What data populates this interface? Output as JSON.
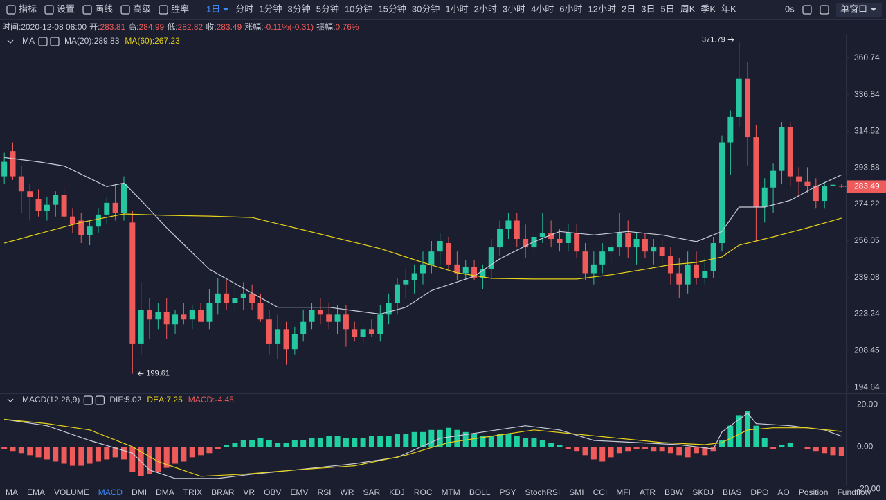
{
  "toolbar": {
    "tools": [
      "指标",
      "设置",
      "画线",
      "高级",
      "胜率"
    ],
    "intervals": [
      "1日",
      "分时",
      "1分钟",
      "3分钟",
      "5分钟",
      "10分钟",
      "15分钟",
      "30分钟",
      "1小时",
      "2小时",
      "3小时",
      "4小时",
      "6小时",
      "12小时",
      "2日",
      "3日",
      "5日",
      "周K",
      "季K",
      "年K"
    ],
    "active_interval_index": 0,
    "timer": "0s",
    "window": "单窗口"
  },
  "info_bar": {
    "time": "时间:2020-12-08 08:00",
    "open": "开:",
    "high": "高:",
    "low": "低:",
    "close": "收:",
    "change": "涨幅:",
    "change_value": "-0.11%(-0.31)",
    "amplitude": "振幅:",
    "amplitude_value": "0.76%"
  },
  "indicator_tabs": {
    "items": [
      "MA",
      "EMA",
      "VOLUME",
      "MACD",
      "DMI",
      "DMA",
      "TRIX",
      "BRAR",
      "VR",
      "OBV",
      "EMV",
      "RSI",
      "WR",
      "SAR",
      "KDJ",
      "ROC",
      "MTM",
      "BOLL",
      "PSY",
      "StochRSI",
      "SMI",
      "CCI",
      "MFI",
      "ATR",
      "BBW",
      "SKDJ",
      "BIAS",
      "DPO",
      "AO",
      "Position",
      "Fundflow"
    ],
    "active_index": 3
  },
  "chart_data": [
    {
      "type": "candlestick",
      "indicator": "MA",
      "log": true,
      "grid": false,
      "up_color": "#26c6a0",
      "down_color": "#ef5b5b",
      "ylim": [
        192.4,
        377.9
      ],
      "yticks": [
        194.64,
        208.45,
        223.24,
        239.08,
        256.05,
        274.22,
        293.68,
        314.52,
        336.84,
        360.74
      ],
      "open": [
        289,
        303,
        289,
        281,
        277,
        271,
        274,
        279,
        268,
        266,
        259,
        263,
        269,
        275,
        270,
        265,
        211,
        225,
        221,
        224,
        219,
        223,
        221,
        225,
        220,
        228,
        232,
        228,
        230,
        232,
        228,
        221,
        211,
        217,
        209,
        215,
        220,
        225,
        223,
        220,
        223,
        217,
        214,
        217,
        215,
        223,
        228,
        236,
        238,
        241,
        245,
        251,
        255,
        245,
        241,
        244,
        239,
        243,
        253,
        262,
        266,
        257,
        253,
        258,
        260,
        257,
        255,
        260,
        251,
        241,
        245,
        251,
        253,
        260,
        253,
        257,
        251,
        253,
        249,
        241,
        236,
        245,
        239,
        242,
        255,
        308,
        323,
        347,
        311,
        273,
        283,
        292,
        317,
        289,
        286,
        284,
        276,
        284,
        283.81
      ],
      "high": [
        302,
        308,
        295,
        285,
        282,
        278,
        281,
        284,
        272,
        270,
        266,
        272,
        278,
        285,
        289,
        271,
        237,
        230,
        228,
        230,
        225,
        228,
        227,
        228,
        234,
        239,
        238,
        236,
        237,
        236,
        232,
        225,
        223,
        220,
        218,
        225,
        228,
        230,
        228,
        227,
        227,
        220,
        218,
        221,
        227,
        232,
        239,
        243,
        245,
        251,
        256,
        260,
        258,
        251,
        247,
        247,
        245,
        257,
        266,
        270,
        270,
        264,
        262,
        270,
        266,
        262,
        264,
        264,
        255,
        251,
        255,
        258,
        270,
        266,
        260,
        260,
        257,
        257,
        253,
        248,
        251,
        251,
        248,
        258,
        312,
        327,
        371.79,
        358,
        318,
        288,
        296,
        320,
        320,
        294,
        294,
        288,
        286,
        288,
        284.99
      ],
      "low": [
        285,
        287,
        270,
        266,
        268,
        266,
        268,
        266,
        260,
        255,
        254,
        260,
        264,
        266,
        266,
        199.61,
        207,
        213,
        217,
        213,
        215,
        219,
        217,
        220,
        217,
        223,
        225,
        223,
        225,
        225,
        220,
        207,
        205,
        203,
        207,
        212,
        217,
        219,
        217,
        215,
        210,
        212,
        211,
        214,
        212,
        219,
        223,
        230,
        232,
        236,
        241,
        245,
        243,
        238,
        238,
        238,
        234,
        239,
        249,
        257,
        253,
        248,
        248,
        255,
        253,
        251,
        251,
        248,
        238,
        236,
        241,
        245,
        249,
        248,
        245,
        248,
        245,
        245,
        236,
        230,
        232,
        236,
        236,
        239,
        251,
        290,
        317,
        295,
        256,
        265,
        270,
        285,
        284,
        278,
        280,
        272,
        272,
        280,
        282.82
      ],
      "close": [
        297,
        289,
        281,
        278,
        271,
        274,
        279,
        268,
        264,
        259,
        263,
        269,
        275,
        270,
        285,
        211,
        225,
        221,
        224,
        219,
        223,
        221,
        225,
        220,
        228,
        232,
        228,
        230,
        232,
        228,
        221,
        211,
        217,
        209,
        215,
        220,
        225,
        223,
        220,
        223,
        217,
        214,
        217,
        215,
        223,
        228,
        236,
        238,
        241,
        245,
        251,
        256,
        245,
        241,
        244,
        239,
        243,
        253,
        262,
        266,
        257,
        253,
        258,
        260,
        257,
        255,
        260,
        251,
        241,
        245,
        251,
        253,
        260,
        253,
        257,
        251,
        253,
        249,
        241,
        236,
        245,
        239,
        242,
        255,
        308,
        323,
        347,
        311,
        273,
        283,
        292,
        317,
        289,
        286,
        284,
        276,
        284,
        284.5,
        283.49
      ],
      "series": [
        {
          "name": "MA(20):",
          "color": "#c9ccd8",
          "x": [
            0,
            4,
            7,
            12,
            14,
            16,
            19,
            24,
            27,
            32,
            38,
            44,
            47,
            50,
            55,
            58,
            62,
            65,
            69,
            73,
            77,
            81,
            84,
            86,
            89,
            92,
            95,
            98
          ],
          "values": [
            299.4,
            297,
            294.7,
            283.5,
            285.4,
            276.3,
            262.4,
            242.8,
            236.4,
            226.1,
            226.1,
            223.2,
            226.1,
            233.3,
            239.6,
            247.6,
            255.7,
            260.6,
            258.9,
            260.6,
            258.9,
            255.7,
            260.6,
            272.8,
            272.8,
            276.3,
            283.5,
            289.83
          ]
        },
        {
          "name": "MA(60):",
          "color": "#e6d319",
          "x": [
            0,
            5,
            9,
            14,
            19,
            24,
            29,
            34,
            39,
            44,
            49,
            53,
            57,
            62,
            67,
            71,
            75,
            78,
            81,
            84,
            86,
            90,
            94,
            98
          ],
          "values": [
            255.0,
            260.6,
            265.1,
            269.3,
            268.6,
            268.2,
            267.5,
            262.4,
            257.3,
            252.4,
            245.9,
            241.2,
            238.7,
            238.4,
            238.4,
            240.3,
            242.8,
            244.9,
            245.9,
            248.5,
            254.0,
            258.0,
            262.4,
            267.23
          ]
        }
      ]
    },
    {
      "type": "bar",
      "indicator": "MACD(12,26,9)",
      "grid": false,
      "up_color": "#1fd0a0",
      "down_color": "#ef5b5b",
      "ylim": [
        -18,
        24
      ],
      "yticks": [
        {
          "value": 20,
          "label": "20.00"
        },
        {
          "value": 0,
          "label": "0.00"
        },
        {
          "value": -20,
          "label": "-20.00"
        }
      ],
      "series": [
        {
          "name": "MACD:",
          "color": "#ef5b5b",
          "values": [
            -1,
            -2,
            -3,
            -4,
            -5,
            -6,
            -7,
            -8,
            -9,
            -9,
            -8,
            -7,
            -6,
            -5,
            -6,
            -12,
            -14,
            -13,
            -12,
            -10,
            -8,
            -7,
            -5,
            -4,
            -3,
            -1,
            1,
            2,
            3,
            3,
            4,
            3,
            2,
            2,
            3,
            3,
            4,
            4,
            5,
            5,
            4,
            4,
            4,
            5,
            5,
            5,
            6,
            6,
            7,
            7,
            8,
            8,
            9,
            8,
            7,
            6,
            5,
            5,
            6,
            6,
            5,
            4,
            4,
            3,
            2,
            1,
            -1,
            -2,
            -4,
            -6,
            -7,
            -5,
            -3,
            -2,
            -1,
            -1,
            -2,
            -2,
            -3,
            -4,
            -5,
            -3,
            -4,
            -2,
            3,
            10,
            15,
            17,
            10,
            4,
            -1,
            1,
            2,
            0,
            -1,
            -2,
            -3,
            -4,
            -4.45
          ]
        },
        {
          "name": "DIF:",
          "color": "#c9ccd8",
          "x": [
            0,
            5,
            10,
            15,
            17,
            20,
            25,
            29,
            34,
            41,
            46,
            51,
            56,
            61,
            65,
            69,
            74,
            79,
            83,
            84,
            87,
            88,
            92,
            96,
            98
          ],
          "values": [
            13,
            10,
            3,
            -3,
            -11,
            -15,
            -15,
            -13,
            -11,
            -8,
            -5,
            4,
            7,
            10,
            8,
            3,
            2,
            1,
            -1,
            7,
            16,
            11,
            10,
            8,
            5.02
          ]
        },
        {
          "name": "DEA:",
          "color": "#e6d319",
          "x": [
            0,
            5,
            10,
            15,
            18,
            23,
            28,
            34,
            41,
            47,
            52,
            57,
            62,
            67,
            72,
            77,
            82,
            84,
            87,
            90,
            94,
            98
          ],
          "values": [
            13,
            11,
            8,
            0,
            -7,
            -14,
            -13,
            -11,
            -9,
            -4,
            2,
            5,
            8,
            6,
            4,
            2,
            1,
            2,
            8,
            9,
            9,
            7.25
          ]
        }
      ]
    }
  ]
}
